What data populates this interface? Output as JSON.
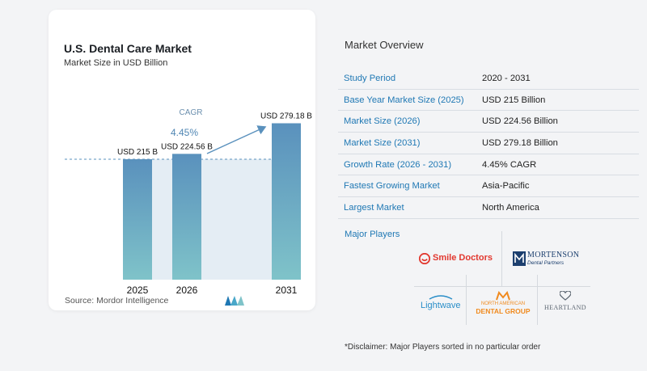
{
  "chart": {
    "title": "U.S. Dental Care Market",
    "subtitle": "Market Size in USD Billion",
    "source": "Source:  Mordor Intelligence",
    "cagr_label": "CAGR",
    "cagr_value": "4.45%"
  },
  "chart_data": {
    "type": "bar",
    "categories": [
      "2025",
      "2026",
      "2031"
    ],
    "values": [
      215,
      224.56,
      279.18
    ],
    "data_labels": [
      "USD 215 B",
      "USD 224.56 B",
      "USD 279.18 B"
    ],
    "title": "U.S. Dental Care Market",
    "subtitle": "Market Size in USD Billion",
    "ylim": [
      0,
      290
    ],
    "reference_line": 215,
    "colors": {
      "bar_top": "#5a91bd",
      "bar_bottom": "#7fc3c9",
      "shade": "#e4edf4",
      "arrow": "#5a91bd",
      "ref_line": "#5a91bd"
    }
  },
  "overview": {
    "title": "Market Overview",
    "rows": [
      {
        "label": "Study Period",
        "value": "2020 - 2031"
      },
      {
        "label": "Base Year Market Size (2025)",
        "value": "USD 215 Billion"
      },
      {
        "label": "Market Size (2026)",
        "value": "USD 224.56 Billion"
      },
      {
        "label": "Market Size (2031)",
        "value": "USD 279.18 Billion"
      },
      {
        "label": "Growth Rate (2026 - 2031)",
        "value": "4.45% CAGR"
      },
      {
        "label": "Fastest Growing Market",
        "value": "Asia-Pacific"
      },
      {
        "label": "Largest Market",
        "value": "North America"
      }
    ]
  },
  "players": {
    "title": "Major Players",
    "smile_doctors": "Smile Doctors",
    "mortenson_1": "MORTENSON",
    "mortenson_2": "Dental Partners",
    "lightwave": "Lightwave",
    "nadg_1": "NORTH AMERICAN",
    "nadg_2": "DENTAL GROUP",
    "heartland": "HEARTLAND"
  },
  "disclaimer": "*Disclaimer: Major Players sorted in no particular order",
  "colors": {
    "accent": "#1f78b4",
    "smile_red": "#e2382f",
    "mortenson_navy": "#1c3f6e",
    "lightwave_blue": "#2a8ec8",
    "nadg_orange": "#f08a1e",
    "heartland_gray": "#5b6570"
  }
}
